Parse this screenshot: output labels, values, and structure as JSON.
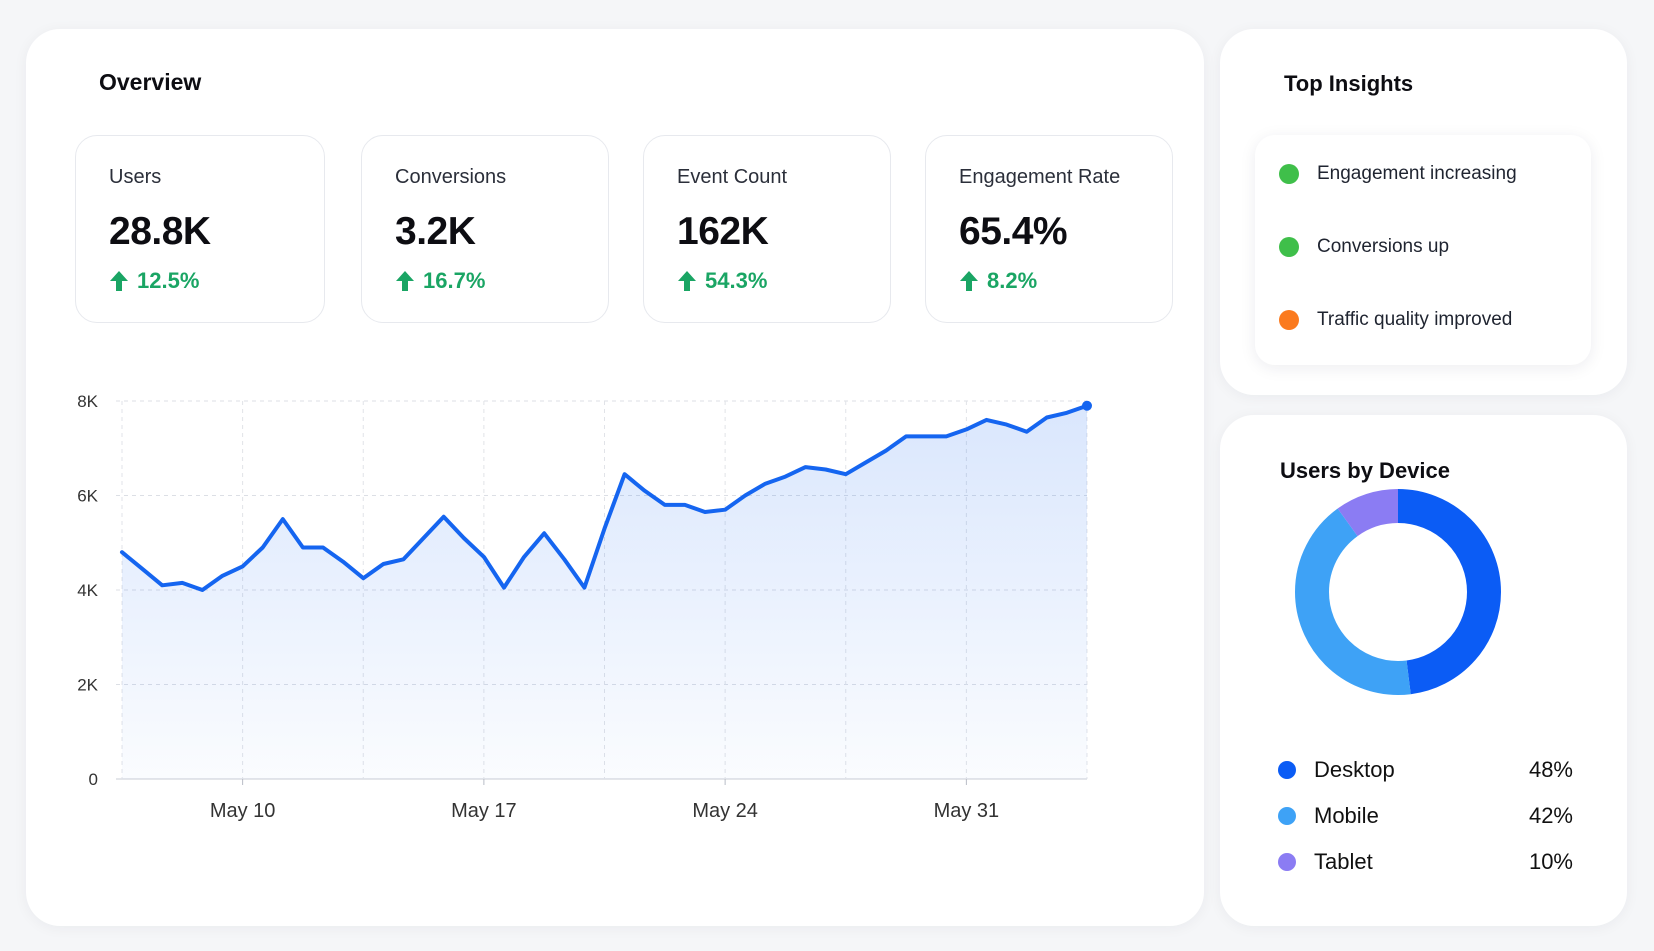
{
  "overview": {
    "title": "Overview",
    "kpis": [
      {
        "label": "Users",
        "value": "28.8K",
        "change": "12.5%"
      },
      {
        "label": "Conversions",
        "value": "3.2K",
        "change": "16.7%"
      },
      {
        "label": "Event Count",
        "value": "162K",
        "change": "54.3%"
      },
      {
        "label": "Engagement Rate",
        "value": "65.4%",
        "change": "8.2%"
      }
    ]
  },
  "chart_data": {
    "type": "area",
    "title": "",
    "xlabel": "",
    "ylabel": "",
    "ylim": [
      0,
      8000
    ],
    "yticks": [
      "0",
      "2K",
      "4K",
      "6K",
      "8K"
    ],
    "xticks": [
      "May 10",
      "May 17",
      "May 24",
      "May 31"
    ],
    "grid": true,
    "color": "#1565f0",
    "series": [
      {
        "values": [
          4800,
          4450,
          4100,
          4150,
          4000,
          4300,
          4500,
          4900,
          5500,
          4900,
          4900,
          4600,
          4250,
          4550,
          4650,
          5100,
          5550,
          5100,
          4700,
          4050,
          4700,
          5200,
          4650,
          4050,
          5300,
          6450,
          6100,
          5800,
          5800,
          5650,
          5700,
          6000,
          6250,
          6400,
          6600,
          6550,
          6450,
          6700,
          6950,
          7250,
          7250,
          7250,
          7400,
          7600,
          7500,
          7350,
          7650,
          7750,
          7900
        ]
      }
    ]
  },
  "insights": {
    "title": "Top Insights",
    "items": [
      {
        "label": "Engagement increasing",
        "color": "#3fbf4a"
      },
      {
        "label": "Conversions up",
        "color": "#3fbf4a"
      },
      {
        "label": "Traffic quality improved",
        "color": "#fb7a1e"
      }
    ]
  },
  "devices": {
    "title": "Users by Device",
    "items": [
      {
        "label": "Desktop",
        "value": 48,
        "pct": "48%",
        "color": "#0b5cf5"
      },
      {
        "label": "Mobile",
        "value": 42,
        "pct": "42%",
        "color": "#3ea2f6"
      },
      {
        "label": "Tablet",
        "value": 10,
        "pct": "10%",
        "color": "#8b7cf3"
      }
    ]
  }
}
